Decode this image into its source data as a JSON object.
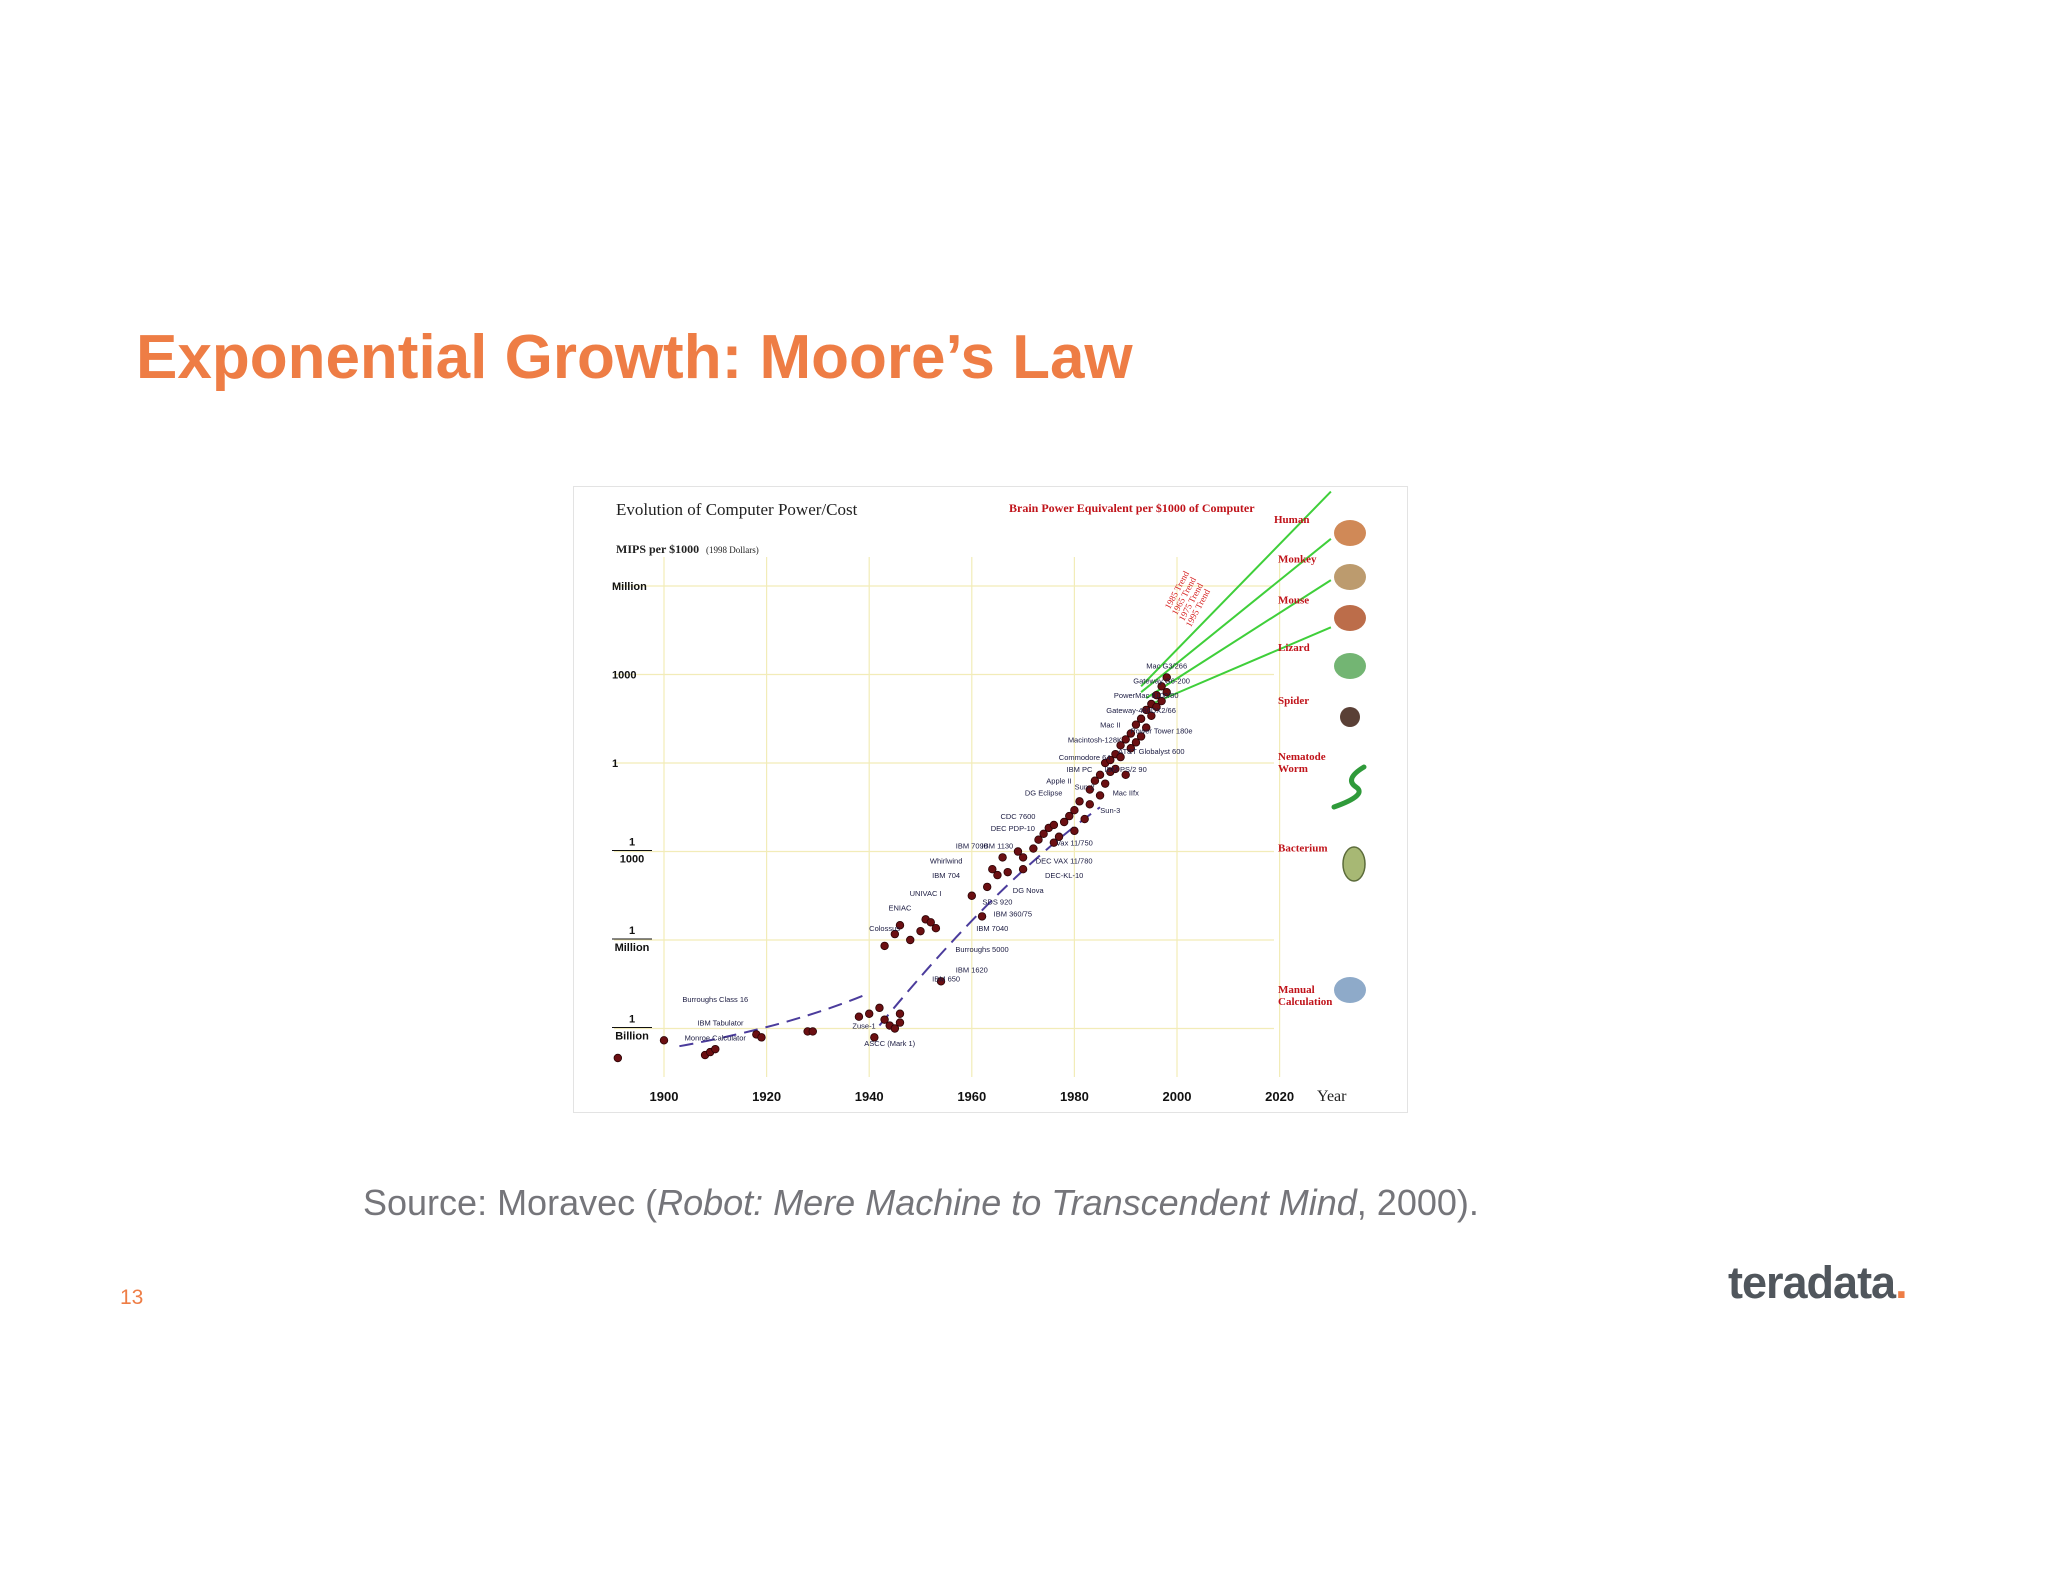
{
  "slide": {
    "title": "Exponential Growth: Moore’s Law",
    "source_prefix": "Source: Moravec (",
    "source_title": "Robot: Mere Machine to Transcendent Mind",
    "source_suffix": ", 2000).",
    "page_number": "13",
    "logo_text": "teradata",
    "logo_dot": ".",
    "accent_color": "#ee7d45",
    "logo_color": "#50565c"
  },
  "chart_data": {
    "type": "scatter",
    "title": "Evolution of Computer Power/Cost",
    "ylabel": "MIPS per $1000",
    "ylabel_note": "(1998 Dollars)",
    "xlabel": "Year",
    "right_title": "Brain Power Equivalent per $1000 of Computer",
    "xlim": [
      1885,
      2035
    ],
    "ylim_log10": [
      -10,
      6.5
    ],
    "log_scale_y": true,
    "grid": true,
    "x_ticks": [
      1900,
      1920,
      1940,
      1960,
      1980,
      2000,
      2020
    ],
    "y_ticks": [
      {
        "log10": 6,
        "top": "Million",
        "bottom": ""
      },
      {
        "log10": 3,
        "top": "1000",
        "bottom": ""
      },
      {
        "log10": 0,
        "top": "1",
        "bottom": ""
      },
      {
        "log10": -3,
        "top": "1",
        "bottom": "1000"
      },
      {
        "log10": -6,
        "top": "1",
        "bottom": "Million"
      },
      {
        "log10": -9,
        "top": "1",
        "bottom": "Billion"
      }
    ],
    "machines": [
      {
        "name": "Burroughs Class 16",
        "x": 1910,
        "y": -8.1
      },
      {
        "name": "IBM Tabulator",
        "x": 1911,
        "y": -8.9
      },
      {
        "name": "Monroe Calculator",
        "x": 1910,
        "y": -9.4
      },
      {
        "name": "Zuse-1",
        "x": 1939,
        "y": -9.0
      },
      {
        "name": "ASCC (Mark 1)",
        "x": 1944,
        "y": -9.6
      },
      {
        "name": "Colossus",
        "x": 1943,
        "y": -5.7
      },
      {
        "name": "ENIAC",
        "x": 1946,
        "y": -5.0
      },
      {
        "name": "UNIVAC I",
        "x": 1951,
        "y": -4.5
      },
      {
        "name": "IBM 704",
        "x": 1955,
        "y": -3.9
      },
      {
        "name": "Whirlwind",
        "x": 1955,
        "y": -3.4
      },
      {
        "name": "IBM 7090",
        "x": 1960,
        "y": -2.9
      },
      {
        "name": "IBM 1130",
        "x": 1965,
        "y": -2.9
      },
      {
        "name": "DEC PDP-10",
        "x": 1968,
        "y": -2.3
      },
      {
        "name": "CDC 7600",
        "x": 1969,
        "y": -1.9
      },
      {
        "name": "DG Eclipse",
        "x": 1974,
        "y": -1.1
      },
      {
        "name": "Apple II",
        "x": 1977,
        "y": -0.7
      },
      {
        "name": "Sun-2",
        "x": 1982,
        "y": -0.9
      },
      {
        "name": "IBM PC",
        "x": 1981,
        "y": -0.3
      },
      {
        "name": "Commodore 64",
        "x": 1982,
        "y": 0.1
      },
      {
        "name": "Macintosh-128K",
        "x": 1984,
        "y": 0.7
      },
      {
        "name": "Mac II",
        "x": 1987,
        "y": 1.2
      },
      {
        "name": "Gateway-486DX2/66",
        "x": 1993,
        "y": 1.7
      },
      {
        "name": "PowerMac 8100/80",
        "x": 1994,
        "y": 2.2
      },
      {
        "name": "Gateway G6-200",
        "x": 1997,
        "y": 2.7
      },
      {
        "name": "Mac G3/266",
        "x": 1998,
        "y": 3.2
      },
      {
        "name": "Power Tower 180e",
        "x": 1997,
        "y": 1.0
      },
      {
        "name": "AT&T Globalyst 600",
        "x": 1995,
        "y": 0.3
      },
      {
        "name": "IBM PS/2 90",
        "x": 1990,
        "y": -0.3
      },
      {
        "name": "Mac IIfx",
        "x": 1990,
        "y": -1.1
      },
      {
        "name": "Sun-3",
        "x": 1987,
        "y": -1.7
      },
      {
        "name": "Vax 11/750",
        "x": 1980,
        "y": -2.8
      },
      {
        "name": "DEC VAX 11/780",
        "x": 1978,
        "y": -3.4
      },
      {
        "name": "DEC-KL-10",
        "x": 1978,
        "y": -3.9
      },
      {
        "name": "DG Nova",
        "x": 1971,
        "y": -4.4
      },
      {
        "name": "SDS 920",
        "x": 1965,
        "y": -4.8
      },
      {
        "name": "IBM 360/75",
        "x": 1968,
        "y": -5.2
      },
      {
        "name": "IBM 7040",
        "x": 1964,
        "y": -5.7
      },
      {
        "name": "Burroughs 5000",
        "x": 1962,
        "y": -6.4
      },
      {
        "name": "IBM 1620",
        "x": 1960,
        "y": -7.1
      },
      {
        "name": "IBM 650",
        "x": 1955,
        "y": -7.4
      }
    ],
    "trend_lines": [
      {
        "name": "1985 Trend",
        "from": [
          1993,
          2.6
        ],
        "to": [
          2030,
          9.2
        ]
      },
      {
        "name": "1965 Trend",
        "from": [
          1993,
          2.4
        ],
        "to": [
          2030,
          7.6
        ]
      },
      {
        "name": "1975 Trend",
        "from": [
          1994,
          2.2
        ],
        "to": [
          2030,
          6.2
        ]
      },
      {
        "name": "1995 Trend",
        "from": [
          1995,
          2.0
        ],
        "to": [
          2030,
          4.6
        ]
      }
    ],
    "brain_equivalents": [
      {
        "name": "Human",
        "y": 8.6
      },
      {
        "name": "Monkey",
        "y": 6.8
      },
      {
        "name": "Mouse",
        "y": 5.4
      },
      {
        "name": "Lizard",
        "y": 3.8
      },
      {
        "name": "Spider",
        "y": 2.0
      },
      {
        "name": "Nematode Worm",
        "y": 0.1
      },
      {
        "name": "Bacterium",
        "y": -3.0
      },
      {
        "name": "Manual Calculation",
        "y": -7.8
      }
    ]
  }
}
